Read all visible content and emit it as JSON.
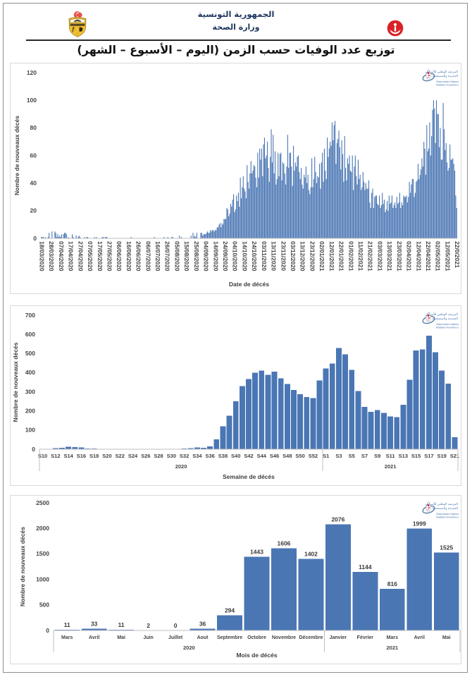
{
  "page": {
    "header": {
      "line1": "الجمهورية التونسية",
      "line2": "وزارة الصحة",
      "emblem_icon": "tunisia-coat-of-arms",
      "ministry_icon": "ministry-of-health-red-crescent"
    },
    "title": "توزيع عدد الوفيات حسب الزمن (اليوم – الأسبوع – الشهر)",
    "watermark_logo": {
      "name": "onmne-observatory-logo",
      "text_line1": "المرصد الوطني للأمراض",
      "text_line2": "الجديدة والمستجدة",
      "text_line3": "Observatoire National des",
      "text_line4": "Maladies Nouvelles et Emergentes"
    },
    "colors": {
      "bar_fill": "#4a76b4",
      "header_text": "#1c355e",
      "title_text": "#121212",
      "axis_text": "#444444",
      "axis_line": "#bfbfbf",
      "box_border": "#d9d9d9",
      "page_border": "#8f8f8f",
      "logo_red": "#d8222a",
      "logo_blue": "#4a7ab5"
    }
  },
  "chart_data": [
    {
      "type": "bar",
      "title": "",
      "xlabel": "Date de décés",
      "ylabel": "Nombre de nouveaux décés",
      "ylim": [
        0,
        120
      ],
      "ytick_step": 20,
      "yticks": [
        0,
        20,
        40,
        60,
        80,
        100,
        120
      ],
      "categories": [
        "18/03/2020",
        "28/03/2020",
        "07/04/2020",
        "17/04/2020",
        "27/04/2020",
        "07/05/2020",
        "17/05/2020",
        "27/05/2020",
        "06/06/2020",
        "16/06/2020",
        "26/06/2020",
        "06/07/2020",
        "16/07/2020",
        "26/07/2020",
        "05/08/2020",
        "15/08/2020",
        "25/08/2020",
        "04/09/2020",
        "14/09/2020",
        "24/09/2020",
        "04/10/2020",
        "14/10/2020",
        "24/10/2020",
        "03/11/2020",
        "13/11/2020",
        "23/11/2020",
        "03/12/2020",
        "13/12/2020",
        "23/12/2020",
        "02/01/2021",
        "12/01/2021",
        "22/01/2021",
        "01/02/2021",
        "11/02/2021",
        "21/02/2021",
        "03/03/2021",
        "13/03/2021",
        "23/03/2021",
        "02/04/2021",
        "12/04/2021",
        "22/04/2021",
        "02/05/2021",
        "12/05/2021",
        "22/0/2021"
      ],
      "label_every": 10,
      "x_label_rotation": 90,
      "values": [
        1,
        1,
        1,
        0,
        1,
        0,
        0,
        1,
        4,
        0,
        0,
        5,
        0,
        0,
        5,
        4,
        1,
        3,
        1,
        2,
        1,
        3,
        0,
        3,
        4,
        4,
        3,
        0,
        1,
        0,
        0,
        0,
        3,
        1,
        0,
        0,
        2,
        0,
        1,
        2,
        1,
        0,
        0,
        0,
        0,
        1,
        0,
        1,
        1,
        0,
        0,
        0,
        0,
        0,
        0,
        1,
        0,
        1,
        0,
        0,
        0,
        0,
        0,
        1,
        1,
        0,
        1,
        1,
        1,
        0,
        0,
        0,
        0,
        0,
        0,
        0,
        0,
        0,
        0,
        0,
        0,
        0,
        0,
        0,
        0,
        0,
        0,
        0,
        0,
        0,
        0,
        0,
        0,
        1,
        0,
        0,
        0,
        0,
        0,
        0,
        0,
        0,
        0,
        0,
        0,
        0,
        0,
        0,
        0,
        0,
        0,
        0,
        0,
        0,
        0,
        0,
        0,
        1,
        0,
        0,
        0,
        0,
        0,
        0,
        0,
        0,
        0,
        1,
        0,
        0,
        0,
        1,
        0,
        0,
        0,
        1,
        1,
        0,
        0,
        0,
        0,
        0,
        0,
        2,
        0,
        1,
        0,
        0,
        0,
        0,
        0,
        0,
        0,
        0,
        0,
        2,
        0,
        4,
        1,
        2,
        1,
        4,
        0,
        0,
        0,
        4,
        4,
        2,
        3,
        3,
        3,
        4,
        5,
        4,
        4,
        6,
        5,
        6,
        6,
        5,
        6,
        6,
        8,
        8,
        10,
        11,
        8,
        11,
        10,
        14,
        14,
        14,
        22,
        21,
        16,
        18,
        25,
        23,
        28,
        32,
        19,
        21,
        31,
        27,
        33,
        23,
        44,
        29,
        37,
        45,
        36,
        34,
        29,
        53,
        41,
        36,
        47,
        56,
        47,
        49,
        53,
        52,
        44,
        37,
        62,
        44,
        65,
        57,
        65,
        45,
        68,
        73,
        58,
        60,
        70,
        51,
        41,
        59,
        79,
        55,
        75,
        47,
        63,
        39,
        43,
        62,
        45,
        61,
        62,
        42,
        55,
        54,
        47,
        39,
        52,
        75,
        51,
        62,
        62,
        52,
        38,
        67,
        49,
        55,
        52,
        59,
        60,
        48,
        43,
        51,
        39,
        36,
        46,
        44,
        52,
        40,
        46,
        35,
        32,
        37,
        58,
        37,
        43,
        59,
        48,
        40,
        45,
        44,
        54,
        36,
        55,
        62,
        41,
        65,
        49,
        43,
        73,
        59,
        65,
        70,
        67,
        84,
        71,
        82,
        85,
        54,
        69,
        72,
        78,
        66,
        50,
        71,
        61,
        41,
        74,
        51,
        42,
        58,
        54,
        60,
        49,
        48,
        60,
        35,
        52,
        60,
        45,
        39,
        57,
        43,
        46,
        35,
        37,
        48,
        41,
        35,
        40,
        36,
        36,
        42,
        26,
        22,
        33,
        36,
        22,
        30,
        31,
        31,
        25,
        24,
        31,
        22,
        24,
        33,
        25,
        28,
        19,
        21,
        27,
        20,
        31,
        25,
        26,
        31,
        22,
        24,
        26,
        22,
        30,
        25,
        26,
        33,
        22,
        26,
        24,
        31,
        30,
        30,
        31,
        26,
        30,
        41,
        33,
        39,
        43,
        43,
        30,
        33,
        41,
        42,
        54,
        43,
        46,
        50,
        58,
        52,
        70,
        65,
        46,
        82,
        63,
        65,
        84,
        60,
        74,
        93,
        100,
        94,
        69,
        100,
        90,
        90,
        66,
        80,
        57,
        57,
        98,
        79,
        64,
        69,
        55,
        49,
        51,
        68,
        57,
        57,
        58,
        54,
        49,
        31,
        22
      ],
      "grid": false,
      "legend": "none",
      "bar_color": "#4a76b4"
    },
    {
      "type": "bar",
      "title": "",
      "xlabel": "Semaine de décés",
      "ylabel": "Nombre de nouveaux décés",
      "ylim": [
        0,
        700
      ],
      "ytick_step": 100,
      "yticks": [
        0,
        100,
        200,
        300,
        400,
        500,
        600,
        700
      ],
      "categories": [
        "S10",
        "S11",
        "S12",
        "S13",
        "S14",
        "S15",
        "S16",
        "S17",
        "S18",
        "S19",
        "S20",
        "S21",
        "S22",
        "S23",
        "S24",
        "S25",
        "S26",
        "S27",
        "S28",
        "S29",
        "S30",
        "S31",
        "S32",
        "S33",
        "S34",
        "S35",
        "S36",
        "S37",
        "S38",
        "S39",
        "S40",
        "S41",
        "S42",
        "S43",
        "S44",
        "S45",
        "S46",
        "S47",
        "S48",
        "S49",
        "S50",
        "S51",
        "S52",
        "S53",
        "S1",
        "S2",
        "S3",
        "S4",
        "S5",
        "S6",
        "S7",
        "S8",
        "S9",
        "S10",
        "S11",
        "S12",
        "S13",
        "S14",
        "S15",
        "S16",
        "S17",
        "S18",
        "S19",
        "S20",
        "S21"
      ],
      "label_every": 2,
      "x_label_rotation": 0,
      "values": [
        1,
        2,
        5,
        8,
        12,
        11,
        9,
        4,
        3,
        2,
        2,
        1,
        1,
        1,
        1,
        1,
        1,
        1,
        1,
        2,
        2,
        2,
        3,
        6,
        10,
        8,
        15,
        52,
        120,
        175,
        250,
        330,
        366,
        399,
        410,
        389,
        405,
        370,
        340,
        310,
        287,
        272,
        268,
        360,
        421,
        447,
        529,
        496,
        414,
        304,
        221,
        196,
        205,
        190,
        171,
        168,
        232,
        363,
        515,
        522,
        594,
        507,
        411,
        342,
        62
      ],
      "groups": [
        {
          "label": "2020",
          "count": 44
        },
        {
          "label": "2021",
          "count": 21
        }
      ],
      "grid": false,
      "legend": "none",
      "bar_color": "#4a76b4"
    },
    {
      "type": "bar",
      "title": "",
      "xlabel": "Mois de décés",
      "ylabel": "Nombre de nouveaux décés",
      "ylim": [
        0,
        2500
      ],
      "ytick_step": 500,
      "yticks": [
        0,
        500,
        1000,
        1500,
        2000,
        2500
      ],
      "categories": [
        "Mars",
        "Avril",
        "Mai",
        "Juin",
        "Juillet",
        "Aout",
        "Septembre",
        "Octobre",
        "Novembre",
        "Décembre",
        "Janvier",
        "Février",
        "Mars",
        "Avril",
        "Mai"
      ],
      "label_every": 1,
      "x_label_rotation": 0,
      "values": [
        11,
        33,
        11,
        2,
        0,
        36,
        294,
        1443,
        1606,
        1402,
        2076,
        1144,
        816,
        1999,
        1525
      ],
      "data_labels": true,
      "groups": [
        {
          "label": "2020",
          "count": 10
        },
        {
          "label": "2021",
          "count": 5
        }
      ],
      "grid": false,
      "legend": "none",
      "bar_color": "#4a76b4"
    }
  ]
}
